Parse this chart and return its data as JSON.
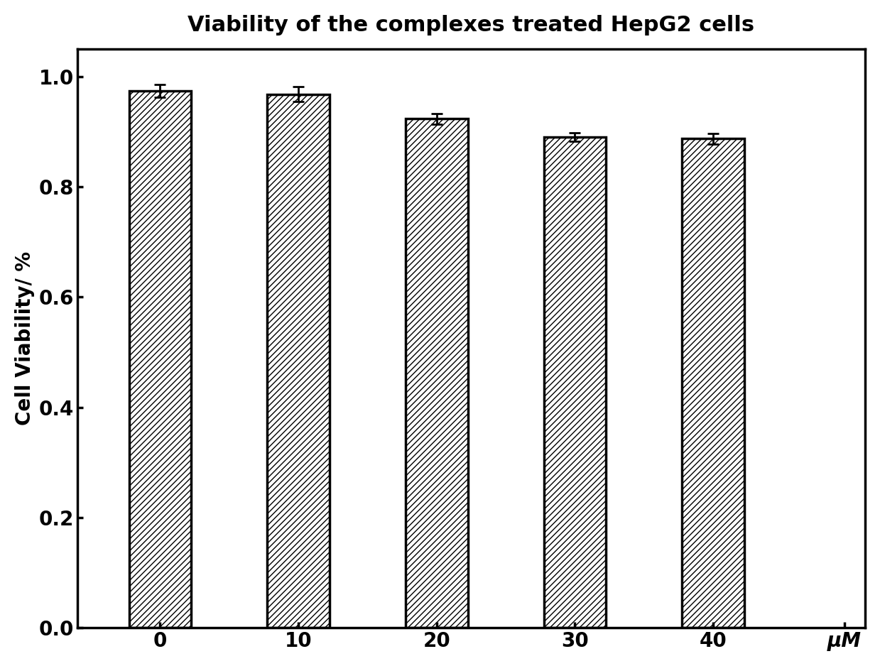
{
  "title": "Viability of the complexes treated HepG2 cells",
  "xlabel": "μM",
  "ylabel": "Cell Viability/ %",
  "categories": [
    "0",
    "10",
    "20",
    "30",
    "40"
  ],
  "values": [
    0.974,
    0.968,
    0.923,
    0.89,
    0.887
  ],
  "errors": [
    0.012,
    0.013,
    0.01,
    0.008,
    0.01
  ],
  "ylim": [
    0.0,
    1.05
  ],
  "yticks": [
    0.0,
    0.2,
    0.4,
    0.6,
    0.8,
    1.0
  ],
  "bar_width": 0.45,
  "hatch_pattern": "////",
  "bar_facecolor": "white",
  "bar_edgecolor": "black",
  "background_color": "white",
  "title_fontsize": 22,
  "axis_label_fontsize": 20,
  "tick_fontsize": 20,
  "title_fontweight": "bold",
  "axis_label_fontweight": "bold",
  "tick_fontweight": "bold",
  "linewidth": 2.5
}
